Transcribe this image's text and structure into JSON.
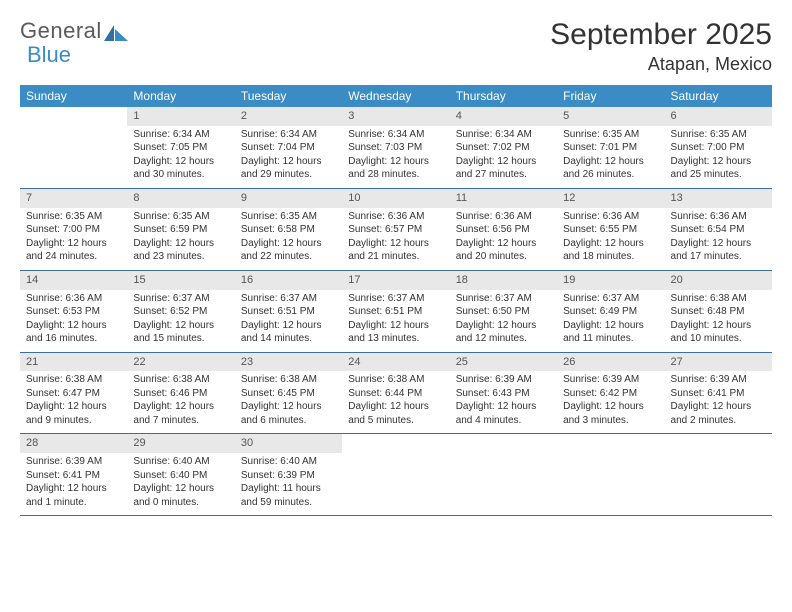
{
  "logo": {
    "text1": "General",
    "text2": "Blue"
  },
  "title": "September 2025",
  "location": "Atapan, Mexico",
  "colors": {
    "header_bg": "#3b8bc4",
    "header_text": "#ffffff",
    "daynum_bg": "#e8e8e8",
    "row_border": "#3b6f9e",
    "text": "#333333"
  },
  "dow": [
    "Sunday",
    "Monday",
    "Tuesday",
    "Wednesday",
    "Thursday",
    "Friday",
    "Saturday"
  ],
  "weeks": [
    [
      {
        "n": "",
        "sr": "",
        "ss": "",
        "dl": ""
      },
      {
        "n": "1",
        "sr": "6:34 AM",
        "ss": "7:05 PM",
        "dl": "12 hours and 30 minutes."
      },
      {
        "n": "2",
        "sr": "6:34 AM",
        "ss": "7:04 PM",
        "dl": "12 hours and 29 minutes."
      },
      {
        "n": "3",
        "sr": "6:34 AM",
        "ss": "7:03 PM",
        "dl": "12 hours and 28 minutes."
      },
      {
        "n": "4",
        "sr": "6:34 AM",
        "ss": "7:02 PM",
        "dl": "12 hours and 27 minutes."
      },
      {
        "n": "5",
        "sr": "6:35 AM",
        "ss": "7:01 PM",
        "dl": "12 hours and 26 minutes."
      },
      {
        "n": "6",
        "sr": "6:35 AM",
        "ss": "7:00 PM",
        "dl": "12 hours and 25 minutes."
      }
    ],
    [
      {
        "n": "7",
        "sr": "6:35 AM",
        "ss": "7:00 PM",
        "dl": "12 hours and 24 minutes."
      },
      {
        "n": "8",
        "sr": "6:35 AM",
        "ss": "6:59 PM",
        "dl": "12 hours and 23 minutes."
      },
      {
        "n": "9",
        "sr": "6:35 AM",
        "ss": "6:58 PM",
        "dl": "12 hours and 22 minutes."
      },
      {
        "n": "10",
        "sr": "6:36 AM",
        "ss": "6:57 PM",
        "dl": "12 hours and 21 minutes."
      },
      {
        "n": "11",
        "sr": "6:36 AM",
        "ss": "6:56 PM",
        "dl": "12 hours and 20 minutes."
      },
      {
        "n": "12",
        "sr": "6:36 AM",
        "ss": "6:55 PM",
        "dl": "12 hours and 18 minutes."
      },
      {
        "n": "13",
        "sr": "6:36 AM",
        "ss": "6:54 PM",
        "dl": "12 hours and 17 minutes."
      }
    ],
    [
      {
        "n": "14",
        "sr": "6:36 AM",
        "ss": "6:53 PM",
        "dl": "12 hours and 16 minutes."
      },
      {
        "n": "15",
        "sr": "6:37 AM",
        "ss": "6:52 PM",
        "dl": "12 hours and 15 minutes."
      },
      {
        "n": "16",
        "sr": "6:37 AM",
        "ss": "6:51 PM",
        "dl": "12 hours and 14 minutes."
      },
      {
        "n": "17",
        "sr": "6:37 AM",
        "ss": "6:51 PM",
        "dl": "12 hours and 13 minutes."
      },
      {
        "n": "18",
        "sr": "6:37 AM",
        "ss": "6:50 PM",
        "dl": "12 hours and 12 minutes."
      },
      {
        "n": "19",
        "sr": "6:37 AM",
        "ss": "6:49 PM",
        "dl": "12 hours and 11 minutes."
      },
      {
        "n": "20",
        "sr": "6:38 AM",
        "ss": "6:48 PM",
        "dl": "12 hours and 10 minutes."
      }
    ],
    [
      {
        "n": "21",
        "sr": "6:38 AM",
        "ss": "6:47 PM",
        "dl": "12 hours and 9 minutes."
      },
      {
        "n": "22",
        "sr": "6:38 AM",
        "ss": "6:46 PM",
        "dl": "12 hours and 7 minutes."
      },
      {
        "n": "23",
        "sr": "6:38 AM",
        "ss": "6:45 PM",
        "dl": "12 hours and 6 minutes."
      },
      {
        "n": "24",
        "sr": "6:38 AM",
        "ss": "6:44 PM",
        "dl": "12 hours and 5 minutes."
      },
      {
        "n": "25",
        "sr": "6:39 AM",
        "ss": "6:43 PM",
        "dl": "12 hours and 4 minutes."
      },
      {
        "n": "26",
        "sr": "6:39 AM",
        "ss": "6:42 PM",
        "dl": "12 hours and 3 minutes."
      },
      {
        "n": "27",
        "sr": "6:39 AM",
        "ss": "6:41 PM",
        "dl": "12 hours and 2 minutes."
      }
    ],
    [
      {
        "n": "28",
        "sr": "6:39 AM",
        "ss": "6:41 PM",
        "dl": "12 hours and 1 minute."
      },
      {
        "n": "29",
        "sr": "6:40 AM",
        "ss": "6:40 PM",
        "dl": "12 hours and 0 minutes."
      },
      {
        "n": "30",
        "sr": "6:40 AM",
        "ss": "6:39 PM",
        "dl": "11 hours and 59 minutes."
      },
      {
        "n": "",
        "sr": "",
        "ss": "",
        "dl": ""
      },
      {
        "n": "",
        "sr": "",
        "ss": "",
        "dl": ""
      },
      {
        "n": "",
        "sr": "",
        "ss": "",
        "dl": ""
      },
      {
        "n": "",
        "sr": "",
        "ss": "",
        "dl": ""
      }
    ]
  ],
  "labels": {
    "sunrise": "Sunrise: ",
    "sunset": "Sunset: ",
    "daylight": "Daylight: "
  }
}
